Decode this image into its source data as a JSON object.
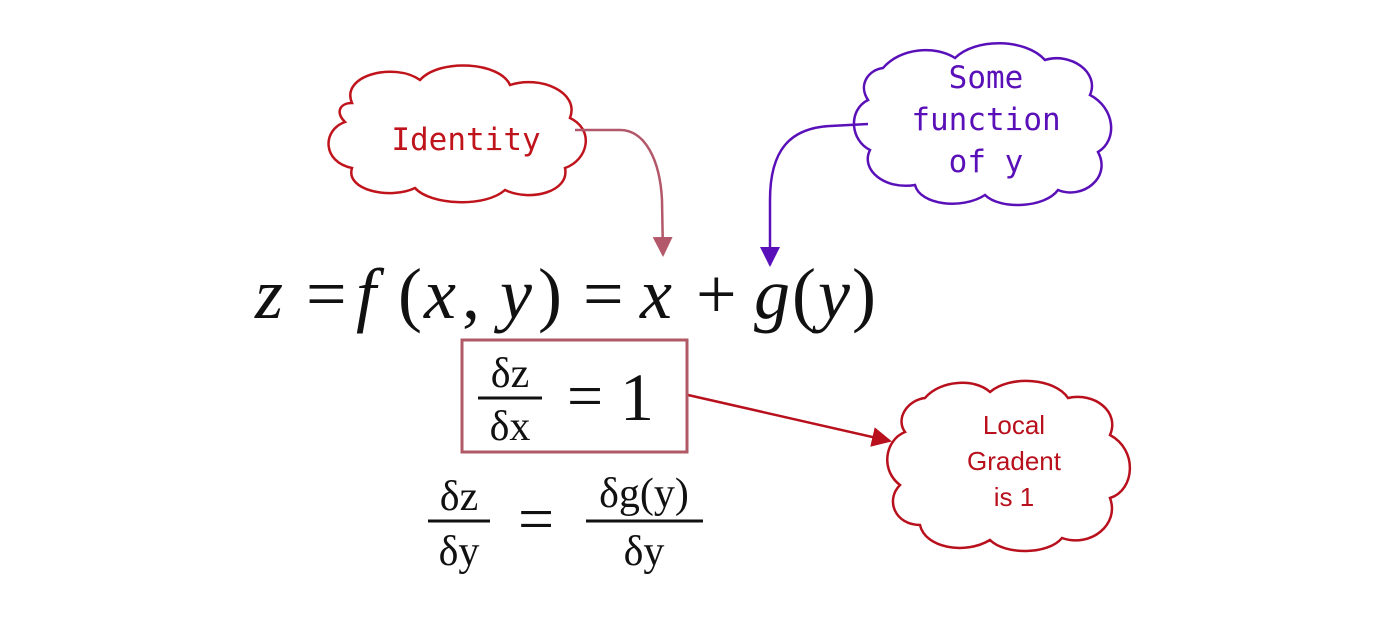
{
  "colors": {
    "identity": "#c0141c",
    "identity_arrow": "#b3586a",
    "some_function": "#5a10b8",
    "local_gradient": "#b8101c",
    "equation_box": "#b05a66",
    "text": "#111111"
  },
  "callouts": {
    "identity": {
      "text": "Identity"
    },
    "some_function": {
      "lines": [
        "Some",
        "function",
        "of y"
      ]
    },
    "local_gradient": {
      "lines": [
        "Local",
        "Gradent",
        "is 1"
      ]
    }
  },
  "equation": {
    "z": "z",
    "eq": "=",
    "f": "f",
    "lparen": "(",
    "x": "x",
    "comma": ",",
    "y": "y",
    "rparen": ")",
    "plus": "+",
    "g": "g"
  },
  "partial_x": {
    "num": "δz",
    "den": "δx",
    "eq": "=",
    "value": "1"
  },
  "partial_y": {
    "lhs_num": "δz",
    "lhs_den": "δy",
    "eq": "=",
    "rhs_num": "δg(y)",
    "rhs_den": "δy"
  }
}
